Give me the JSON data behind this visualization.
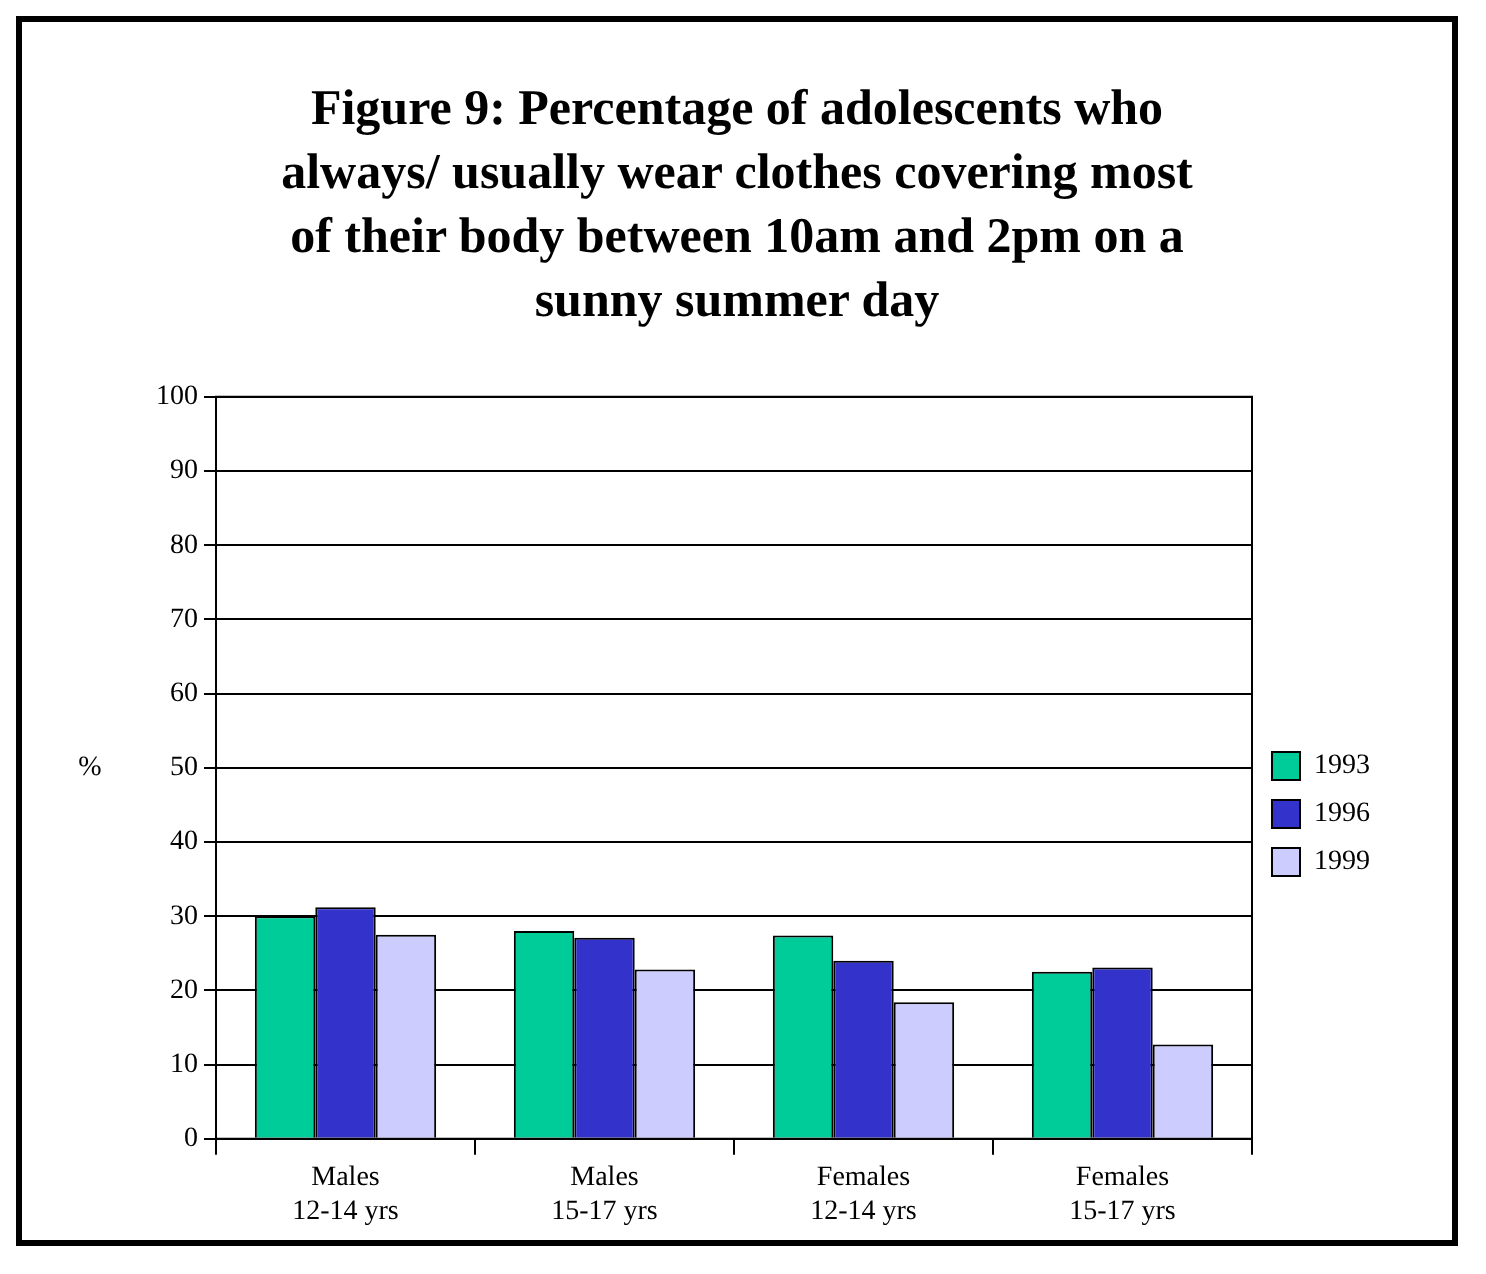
{
  "chart_data": {
    "type": "bar",
    "title": "Figure 9: Percentage of adolescents who always/ usually wear clothes covering most of their body between 10am and 2pm on a sunny summer day",
    "ylabel": "%",
    "categories": [
      "Males 12-14 yrs",
      "Males 15-17 yrs",
      "Females 12-14 yrs",
      "Females 15-17 yrs"
    ],
    "series": [
      {
        "name": "1993",
        "color": "#00cc99",
        "values": [
          30,
          28,
          27.4,
          22.5
        ]
      },
      {
        "name": "1996",
        "color": "#3333cc",
        "values": [
          31.2,
          27.1,
          24,
          23.1
        ]
      },
      {
        "name": "1999",
        "color": "#ccccff",
        "values": [
          27.5,
          22.8,
          18.4,
          12.7
        ]
      }
    ],
    "ylim": [
      0,
      100
    ],
    "yticks": [
      0,
      10,
      20,
      30,
      40,
      50,
      60,
      70,
      80,
      90,
      100
    ],
    "grid": "y",
    "legend": "right"
  }
}
